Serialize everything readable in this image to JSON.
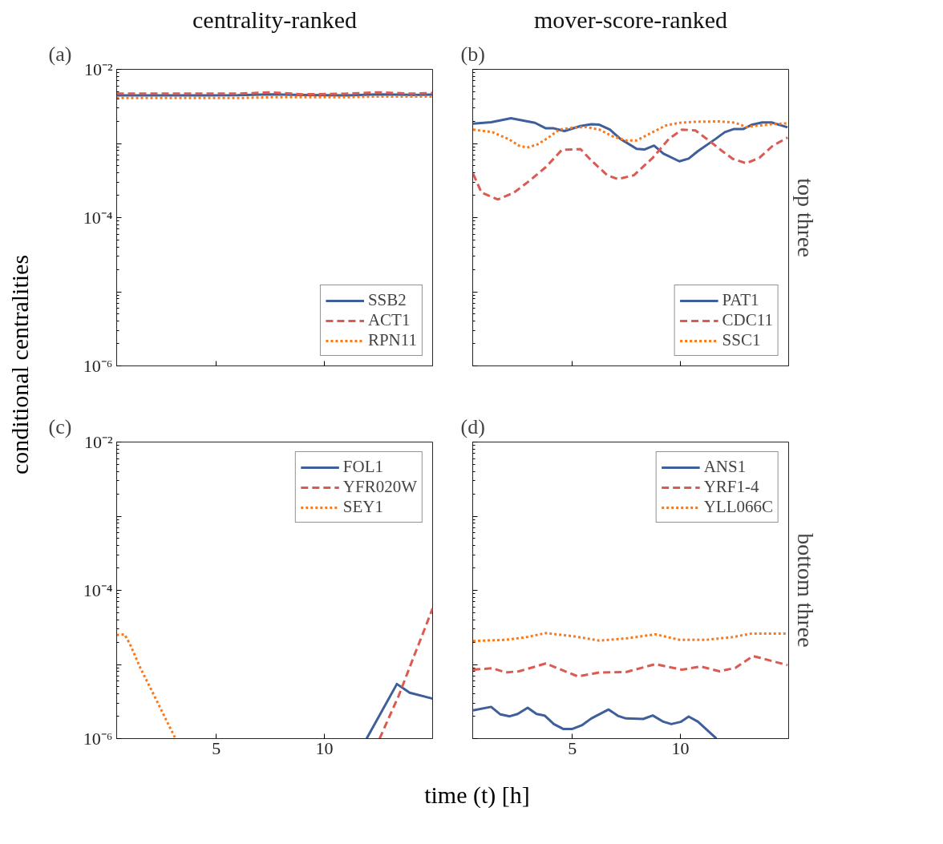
{
  "chart_data": [
    {
      "type": "line",
      "title": "centrality-ranked",
      "ylabel": "conditional centralities",
      "annotations": [
        "(a)"
      ],
      "log": true,
      "legend": "bottom right",
      "tick_labels": "y",
      "xlim": [
        0.4,
        15
      ],
      "xticks": [
        5,
        10
      ],
      "ylim": [
        1e-06,
        0.01
      ],
      "yticks": [
        {
          "value": 1e-06,
          "label": "10⁻⁶"
        },
        {
          "value": 1e-05,
          "label": null
        },
        {
          "value": 0.0001,
          "label": "10⁻⁴"
        },
        {
          "value": 0.001,
          "label": null
        },
        {
          "value": 0.01,
          "label": "10⁻²"
        }
      ],
      "series": [
        {
          "name": "SSB2",
          "color": "#3e5f9a",
          "line_style": "solid",
          "x": [
            0.4,
            2,
            4,
            6,
            7.5,
            9,
            11,
            12.5,
            14,
            15
          ],
          "values": [
            0.00446,
            0.00444,
            0.00446,
            0.00448,
            0.0046,
            0.00452,
            0.00446,
            0.0046,
            0.00452,
            0.00456
          ]
        },
        {
          "name": "ACT1",
          "color": "#db5a52",
          "line_style": "dashed",
          "x": [
            0.4,
            2,
            4,
            6,
            7.5,
            9,
            11,
            12.5,
            14,
            15
          ],
          "values": [
            0.0047,
            0.0047,
            0.0047,
            0.0047,
            0.0049,
            0.0046,
            0.0047,
            0.0049,
            0.0047,
            0.0048
          ]
        },
        {
          "name": "RPN11",
          "color": "#f97a1c",
          "line_style": "dotted",
          "x": [
            0.4,
            2,
            4,
            6,
            7.5,
            9,
            11,
            12.5,
            14,
            15
          ],
          "values": [
            0.0041,
            0.0041,
            0.0041,
            0.0041,
            0.0042,
            0.0042,
            0.0042,
            0.0043,
            0.0043,
            0.0043
          ]
        }
      ]
    },
    {
      "type": "line",
      "title": "mover-score-ranked",
      "annotations": [
        "(b)",
        "top three"
      ],
      "log": true,
      "legend": "bottom right",
      "tick_labels": false,
      "xlim": [
        0.4,
        15
      ],
      "xticks": [
        5,
        10
      ],
      "ylim": [
        1e-06,
        0.01
      ],
      "yticks": [
        {
          "value": 1e-06,
          "label": null
        },
        {
          "value": 1e-05,
          "label": null
        },
        {
          "value": 0.0001,
          "label": null
        },
        {
          "value": 0.001,
          "label": null
        },
        {
          "value": 0.01,
          "label": null
        }
      ],
      "series": [
        {
          "name": "PAT1",
          "color": "#3e5f9a",
          "line_style": "solid",
          "x": [
            0.42,
            1.25,
            2.17,
            3.28,
            3.78,
            4.15,
            4.64,
            5.38,
            5.88,
            6.25,
            6.74,
            7.23,
            7.98,
            8.35,
            8.78,
            9.21,
            9.95,
            10.38,
            10.81,
            11.62,
            12.05,
            12.48,
            12.91,
            13.28,
            13.78,
            14.21,
            14.95
          ],
          "values": [
            0.00185,
            0.00193,
            0.00219,
            0.0019,
            0.0016,
            0.0016,
            0.00147,
            0.00172,
            0.00182,
            0.00179,
            0.00154,
            0.00115,
            0.000845,
            0.00083,
            0.000935,
            0.00073,
            0.000575,
            0.000625,
            0.00079,
            0.00115,
            0.00142,
            0.00157,
            0.00157,
            0.00178,
            0.00192,
            0.00192,
            0.00165
          ]
        },
        {
          "name": "CDC11",
          "color": "#db5a52",
          "line_style": "dashed",
          "x": [
            0.42,
            0.81,
            1.56,
            2.3,
            3.04,
            3.78,
            4.52,
            5.38,
            5.88,
            6.62,
            7.11,
            7.85,
            8.72,
            9.46,
            10.07,
            10.69,
            11.31,
            11.93,
            12.42,
            13.04,
            13.65,
            14.27,
            14.95
          ],
          "values": [
            0.00039,
            0.000217,
            0.000176,
            0.000217,
            0.000316,
            0.00048,
            0.00082,
            0.00084,
            0.00059,
            0.000373,
            0.00033,
            0.000373,
            0.00064,
            0.00115,
            0.00154,
            0.0015,
            0.0011,
            0.00079,
            0.00062,
            0.00054,
            0.00064,
            0.000935,
            0.0012
          ]
        },
        {
          "name": "SSC1",
          "color": "#f97a1c",
          "line_style": "dotted",
          "x": [
            0.42,
            1.31,
            2.05,
            2.54,
            2.91,
            3.41,
            3.9,
            4.4,
            5.01,
            5.63,
            6.25,
            6.86,
            7.48,
            7.98,
            8.59,
            9.33,
            9.95,
            10.81,
            11.8,
            12.54,
            13.04,
            13.65,
            14.27,
            14.95
          ],
          "values": [
            0.00154,
            0.00142,
            0.00115,
            0.000935,
            0.00088,
            0.000975,
            0.0012,
            0.00154,
            0.00163,
            0.00167,
            0.00154,
            0.00125,
            0.0011,
            0.0011,
            0.00136,
            0.00175,
            0.0019,
            0.00197,
            0.00198,
            0.0019,
            0.00167,
            0.00175,
            0.00182,
            0.00187
          ]
        }
      ]
    },
    {
      "type": "line",
      "xlabel": "time (t) [h]",
      "annotations": [
        "(c)"
      ],
      "log": true,
      "legend": "top right",
      "xlim": [
        0.4,
        15
      ],
      "xticks": [
        5,
        10
      ],
      "ylim": [
        1e-06,
        0.01
      ],
      "yticks": [
        {
          "value": 1e-06,
          "label": "10⁻⁶"
        },
        {
          "value": 1e-05,
          "label": null
        },
        {
          "value": 0.0001,
          "label": "10⁻⁴"
        },
        {
          "value": 0.001,
          "label": null
        },
        {
          "value": 0.01,
          "label": "10⁻²"
        }
      ],
      "series": [
        {
          "name": "FOL1",
          "color": "#3e5f9a",
          "line_style": "solid",
          "x": [
            11.95,
            13.35,
            13.94,
            15.0
          ],
          "values": [
            1e-06,
            5.45e-06,
            4.16e-06,
            3.46e-06
          ]
        },
        {
          "name": "YFR020W",
          "color": "#db5a52",
          "line_style": "dashed",
          "x": [
            12.55,
            13.44,
            14.07,
            14.56,
            15.0
          ],
          "values": [
            1e-06,
            3.83e-06,
            1.15e-05,
            2.66e-05,
            5.7e-05
          ]
        },
        {
          "name": "SEY1",
          "color": "#f97a1c",
          "line_style": "dotted",
          "x": [
            0.4,
            0.76,
            1.01,
            1.5,
            2.13,
            2.75,
            3.12
          ],
          "values": [
            2.49e-05,
            2.55e-05,
            1.9e-05,
            8.9e-06,
            3.83e-06,
            1.64e-06,
            1e-06
          ]
        }
      ]
    },
    {
      "type": "line",
      "annotations": [
        "(d)",
        "bottom three"
      ],
      "log": true,
      "legend": "top right",
      "tick_labels": "x",
      "xlim": [
        0.4,
        15
      ],
      "xticks": [
        5,
        10
      ],
      "ylim": [
        1e-06,
        0.01
      ],
      "yticks": [
        {
          "value": 1e-06,
          "label": null
        },
        {
          "value": 1e-05,
          "label": null
        },
        {
          "value": 0.0001,
          "label": null
        },
        {
          "value": 0.001,
          "label": null
        },
        {
          "value": 0.01,
          "label": null
        }
      ],
      "series": [
        {
          "name": "ANS1",
          "color": "#3e5f9a",
          "line_style": "solid",
          "x": [
            0.42,
            1.25,
            1.68,
            2.11,
            2.48,
            2.94,
            3.35,
            3.72,
            4.15,
            4.58,
            5.01,
            5.44,
            5.88,
            6.68,
            7.11,
            7.48,
            8.28,
            8.72,
            9.21,
            9.58,
            10.01,
            10.38,
            10.81,
            11.62,
            11.65
          ],
          "values": [
            2.4e-06,
            2.68e-06,
            2.12e-06,
            2e-06,
            2.15e-06,
            2.61e-06,
            2.15e-06,
            2.05e-06,
            1.57e-06,
            1.35e-06,
            1.35e-06,
            1.51e-06,
            1.87e-06,
            2.47e-06,
            2.03e-06,
            1.87e-06,
            1.84e-06,
            2.05e-06,
            1.69e-06,
            1.57e-06,
            1.68e-06,
            1.98e-06,
            1.69e-06,
            1.03e-06,
            1e-06
          ]
        },
        {
          "name": "YRF1-4",
          "color": "#db5a52",
          "line_style": "dashed",
          "x": [
            0.42,
            1.31,
            1.93,
            2.54,
            3.78,
            5.26,
            6.25,
            7.48,
            8.84,
            10.07,
            10.94,
            11.8,
            12.54,
            13.35,
            14.95
          ],
          "values": [
            8.5e-06,
            8.9e-06,
            7.8e-06,
            8.1e-06,
            1.03e-05,
            6.9e-06,
            7.8e-06,
            7.9e-06,
            1.01e-05,
            8.5e-06,
            9.4e-06,
            8.1e-06,
            9e-06,
            1.3e-05,
            9.8e-06
          ]
        },
        {
          "name": "YLL066C",
          "color": "#f97a1c",
          "line_style": "dotted",
          "x": [
            0.42,
            1.93,
            2.91,
            3.78,
            5.01,
            6.25,
            7.48,
            8.84,
            9.95,
            11.19,
            12.42,
            13.28,
            14.95
          ],
          "values": [
            2.07e-05,
            2.15e-05,
            2.34e-05,
            2.65e-05,
            2.41e-05,
            2.1e-05,
            2.24e-05,
            2.55e-05,
            2.15e-05,
            2.15e-05,
            2.34e-05,
            2.61e-05,
            2.6e-05
          ]
        }
      ]
    }
  ]
}
